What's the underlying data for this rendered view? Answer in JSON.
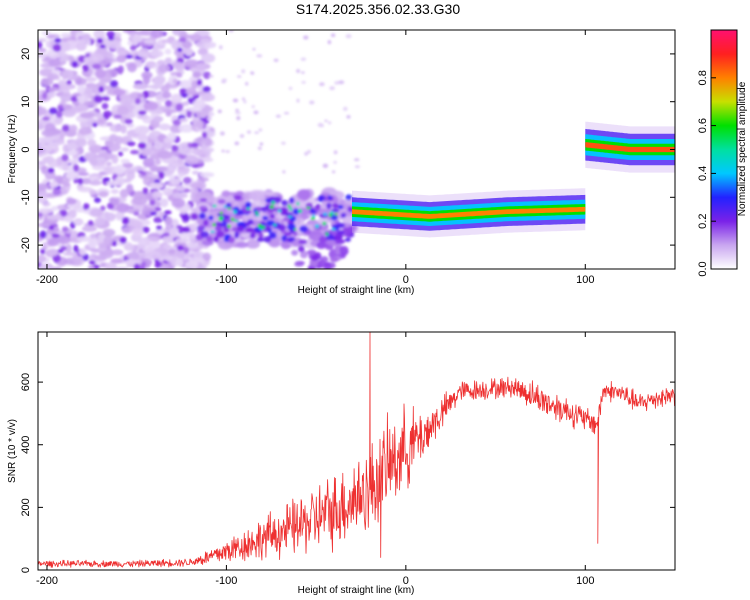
{
  "title": "S174.2025.356.02.33.G30",
  "chart_data": [
    {
      "type": "heatmap",
      "xlabel": "Height of straight line (km)",
      "ylabel": "Frequency (Hz)",
      "xlim": [
        -205,
        150
      ],
      "ylim": [
        -25,
        25
      ],
      "xticks": [
        -200,
        -100,
        0,
        100
      ],
      "yticks": [
        -20,
        -10,
        0,
        10,
        20
      ],
      "colorbar": {
        "label": "Normalized spectral amplitude",
        "range": [
          0,
          1
        ],
        "ticks": [
          0.0,
          0.2,
          0.4,
          0.6,
          0.8
        ],
        "colors": [
          "#ffffff",
          "#c9a6f0",
          "#7a22e8",
          "#2222ff",
          "#00c8ff",
          "#00e0a0",
          "#00e000",
          "#c8e000",
          "#ff8000",
          "#ff2020",
          "#ff1070"
        ]
      },
      "features": [
        {
          "x_range": [
            -205,
            -115
          ],
          "freq_range": [
            -25,
            25
          ],
          "amplitude": 0.15,
          "pattern": "scattered noise"
        },
        {
          "x_range": [
            -115,
            -30
          ],
          "freq_range": [
            -20,
            -10
          ],
          "amplitude": 0.3,
          "pattern": "blob cluster"
        },
        {
          "x_range": [
            -30,
            100
          ],
          "center_freq": [
            -13,
            -14,
            -13,
            -12.5
          ],
          "amplitude": 0.8,
          "pattern": "narrow band"
        },
        {
          "x_range": [
            100,
            150
          ],
          "center_freq": [
            1,
            0,
            0
          ],
          "amplitude": 0.85,
          "pattern": "narrow band"
        }
      ]
    },
    {
      "type": "line",
      "xlabel": "Height of straight line (km)",
      "ylabel": "SNR (10 * v/v)",
      "xlim": [
        -205,
        150
      ],
      "ylim": [
        0,
        760
      ],
      "xticks": [
        -200,
        -100,
        0,
        100
      ],
      "yticks": [
        0,
        200,
        400,
        600
      ],
      "series": [
        {
          "color": "#ee3030",
          "x": [
            -205,
            -180,
            -150,
            -120,
            -110,
            -100,
            -80,
            -60,
            -40,
            -20,
            -10,
            0,
            10,
            20,
            30,
            40,
            50,
            60,
            70,
            80,
            90,
            100,
            105,
            107,
            110,
            120,
            130,
            140,
            150
          ],
          "mean": [
            20,
            20,
            20,
            25,
            40,
            60,
            100,
            140,
            190,
            260,
            330,
            390,
            430,
            500,
            570,
            575,
            580,
            585,
            560,
            530,
            510,
            480,
            470,
            470,
            575,
            565,
            530,
            550,
            560
          ],
          "noise": [
            8,
            8,
            8,
            10,
            20,
            30,
            50,
            70,
            90,
            110,
            110,
            100,
            60,
            40,
            25,
            25,
            25,
            25,
            35,
            35,
            35,
            30,
            30,
            30,
            25,
            25,
            25,
            25,
            25
          ]
        }
      ],
      "spikes": [
        {
          "x": -20,
          "y": 760
        },
        {
          "x": 107,
          "y": 85
        },
        {
          "x": -14,
          "y": 40
        }
      ]
    }
  ]
}
